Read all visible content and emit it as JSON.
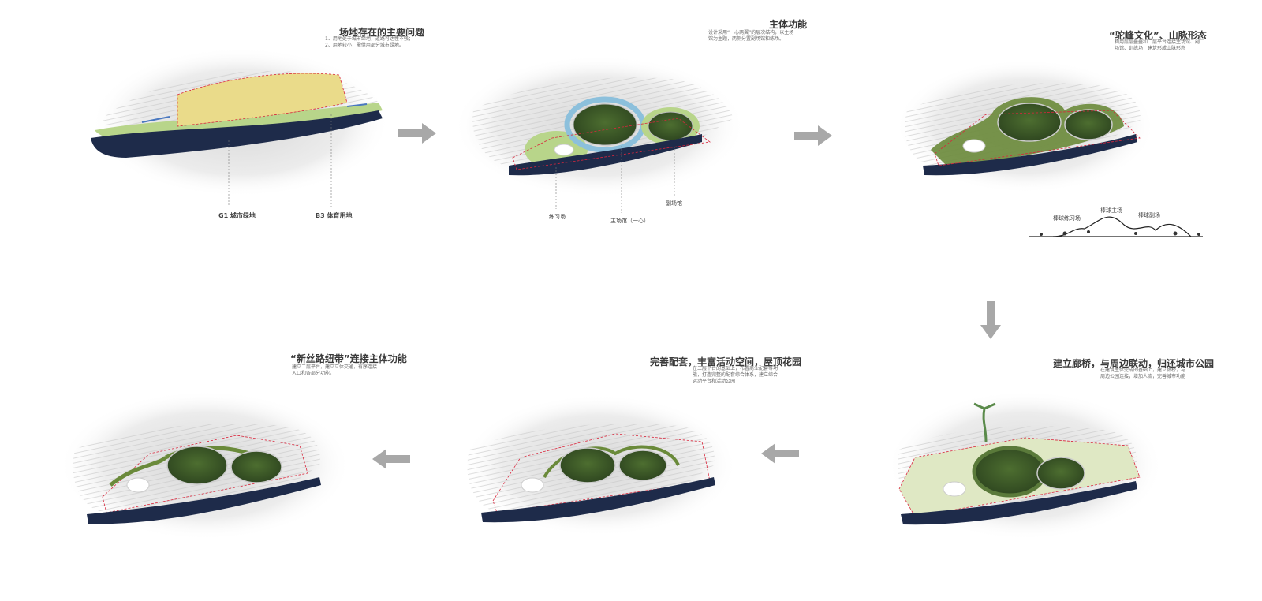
{
  "panels": [
    {
      "title": "场地存在的主要问题",
      "desc": [
        "1、用地处于城市绿地，道路可达性不强；",
        "2、用地较小，需借用部分城市绿地。"
      ],
      "callouts": [
        "G1 城市绿地",
        "B3 体育用地"
      ]
    },
    {
      "title": "主体功能",
      "desc": [
        "设计采用“一心两翼”的层次结构，以主场",
        "馆为主题，两侧分置副场馆和练场。"
      ],
      "callouts": [
        "练习场",
        "主场馆（一心）",
        "副场馆"
      ]
    },
    {
      "title": "“驼峰文化”、山脉形态",
      "desc": [
        "利用层层叠叠和二层平台连接主场馆、副",
        "场馆、训练场，建筑形成山脉形态"
      ],
      "section_labels": [
        "棒球练习场",
        "棒球主场",
        "棒球副场"
      ]
    },
    {
      "title": "建立廊桥，与周边联动，归还城市公园",
      "desc": [
        "在建筑主体完成的基础上，建立廊桥，与",
        "周边公园连接，增加人流，完善城市功能"
      ]
    },
    {
      "title": "完善配套，丰富活动空间，屋顶花园",
      "desc": [
        "在二层平台的基础上，布置商业配套等功",
        "能，打造完整的配套综合体系，建立综合",
        "运动平台和活动公园"
      ]
    },
    {
      "title": "“新丝路纽带”连接主体功能",
      "desc": [
        "建立二层平台，建立立体交通，有序连接",
        "入口和各部分功能。"
      ]
    }
  ],
  "colors": {
    "river": "#1e2b4a",
    "grass": "#3f5a2a",
    "green_light": "#b8d58a",
    "yellow": "#eadb8a",
    "blue_ring": "#8cc0dc",
    "boundary": "#d9263c",
    "arrow": "#a8a8a8",
    "terrain": "#cfcfcf"
  },
  "arrows": [
    "right-arrow",
    "right-arrow",
    "down-arrow",
    "left-arrow",
    "left-arrow"
  ]
}
